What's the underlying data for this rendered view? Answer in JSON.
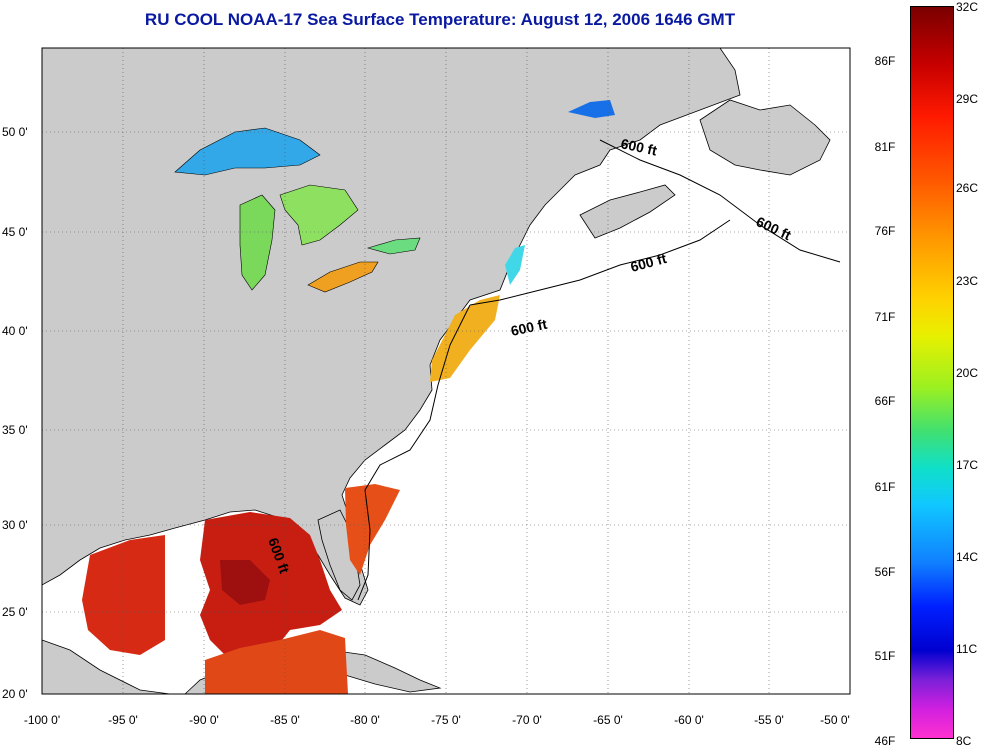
{
  "title": "RU COOL  NOAA-17  Sea Surface Temperature:  August 12, 2006 1646 GMT",
  "map": {
    "lon_range": [
      -100,
      -50
    ],
    "lat_range": [
      20,
      52.5
    ],
    "lon_ticks": [
      "-100 0'",
      "-95 0'",
      "-90 0'",
      "-85 0'",
      "-80 0'",
      "-75 0'",
      "-70 0'",
      "-65 0'",
      "-60 0'",
      "-55 0'",
      "-50 0'"
    ],
    "lat_ticks": [
      "50 0'",
      "45 0'",
      "40 0'",
      "35 0'",
      "30 0'",
      "25 0'",
      "20 0'"
    ],
    "contour_label": "600 ft",
    "land_color": "#cbcbcb",
    "ocean_color": "#ffffff"
  },
  "colorbar": {
    "fahrenheit_labels": [
      "86F",
      "81F",
      "76F",
      "71F",
      "66F",
      "61F",
      "56F",
      "51F",
      "46F"
    ],
    "celsius_labels": [
      "32C",
      "29C",
      "26C",
      "23C",
      "20C",
      "17C",
      "14C",
      "11C",
      "8C"
    ],
    "range_c": [
      8,
      32
    ]
  }
}
